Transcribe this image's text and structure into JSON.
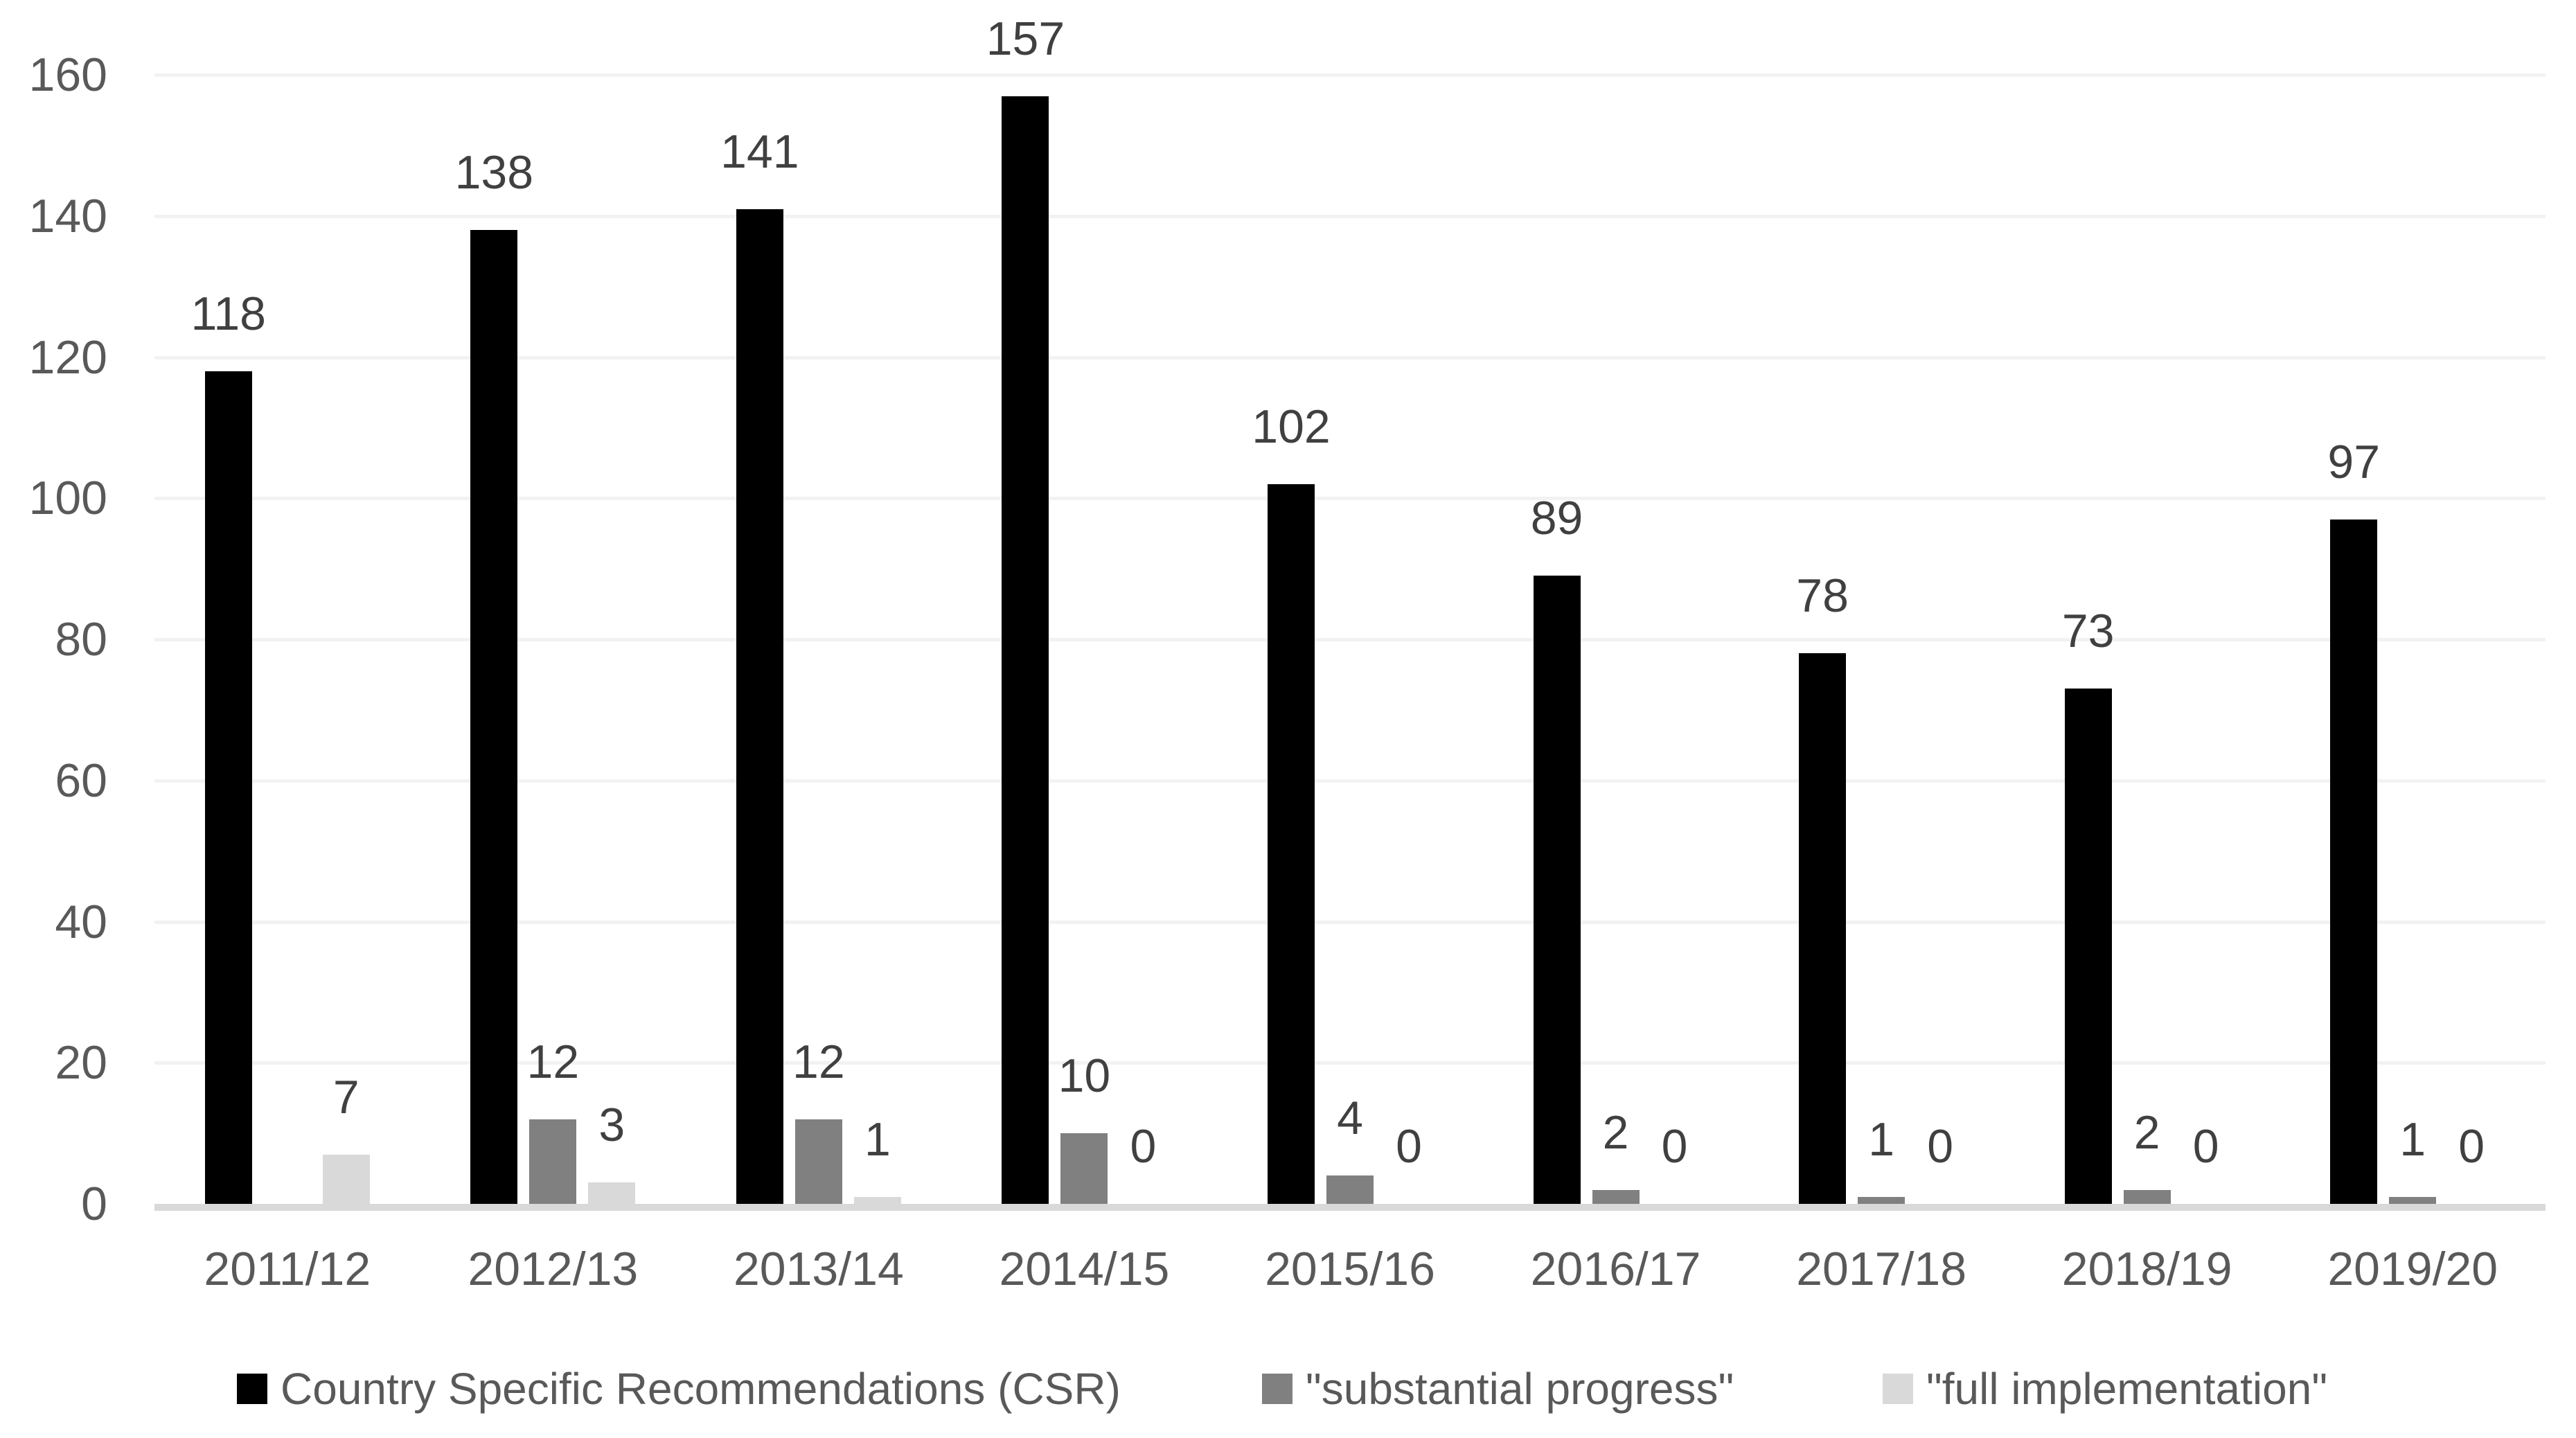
{
  "chart_data": {
    "type": "bar",
    "title": "",
    "categories": [
      "2011/12",
      "2012/13",
      "2013/14",
      "2014/15",
      "2015/16",
      "2016/17",
      "2017/18",
      "2018/19",
      "2019/20"
    ],
    "series": [
      {
        "key": "csr",
        "name": "Country Specific Recommendations (CSR)",
        "color": "#000000",
        "values": [
          118,
          138,
          141,
          157,
          102,
          89,
          78,
          73,
          97
        ]
      },
      {
        "key": "substantial-progress",
        "name": "\"substantial progress\"",
        "color": "#808080",
        "values": [
          null,
          12,
          12,
          10,
          4,
          2,
          1,
          2,
          1
        ]
      },
      {
        "key": "full-implementation",
        "name": "\"full implementation\"",
        "color": "#d9d9d9",
        "values": [
          7,
          3,
          1,
          0,
          0,
          0,
          0,
          0,
          0
        ]
      }
    ],
    "y_axis": {
      "min": 0,
      "max": 160,
      "step": 20,
      "ticks": [
        0,
        20,
        40,
        60,
        80,
        100,
        120,
        140,
        160
      ]
    },
    "data_labels_shown": true,
    "grid": true,
    "legend_position": "bottom"
  },
  "colors": {
    "background": "#ffffff",
    "gridline": "#f2f2f2",
    "axis_line": "#d9d9d9",
    "axis_text": "#595959",
    "data_label_text": "#404040",
    "legend_text": "#595959"
  }
}
